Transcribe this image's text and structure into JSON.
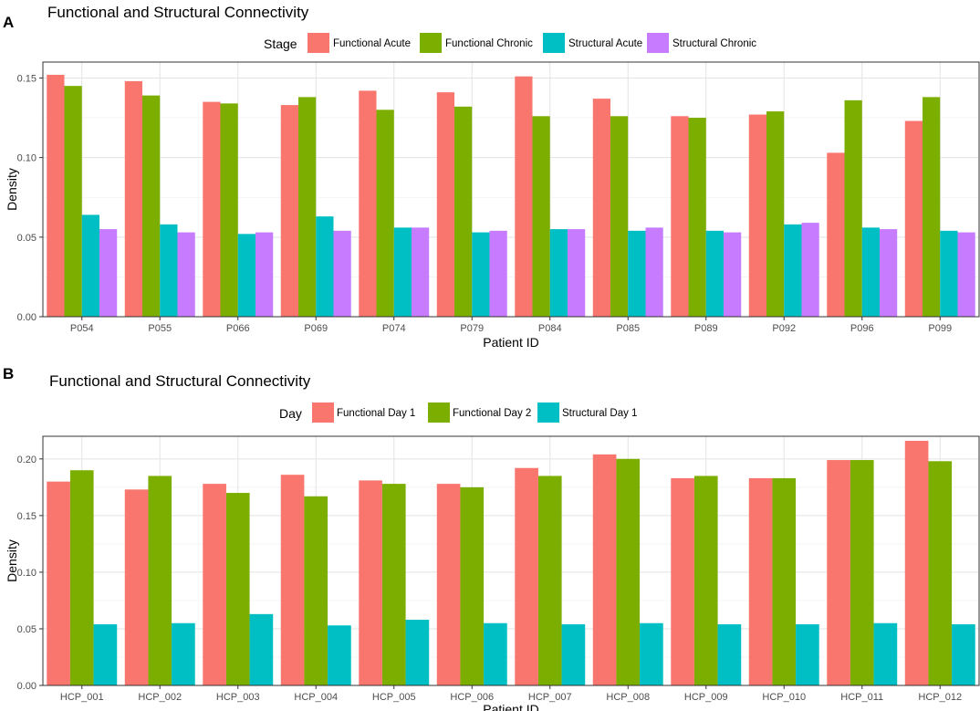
{
  "chart_data": [
    {
      "panel_label": "A",
      "type": "bar",
      "title": "Functional and Structural Connectivity",
      "xlabel": "Patient ID",
      "ylabel": "Density",
      "ylim": [
        0,
        0.16
      ],
      "yticks": [
        "0.00",
        "0.05",
        "0.10",
        "0.15"
      ],
      "grid": true,
      "legend_title": "Stage",
      "legend_position": "top",
      "categories": [
        "P054",
        "P055",
        "P066",
        "P069",
        "P074",
        "P079",
        "P084",
        "P085",
        "P089",
        "P092",
        "P096",
        "P099"
      ],
      "series": [
        {
          "name": "Functional Acute",
          "color": "#F8766D",
          "values": [
            0.152,
            0.148,
            0.135,
            0.133,
            0.142,
            0.141,
            0.151,
            0.137,
            0.126,
            0.127,
            0.103,
            0.123
          ]
        },
        {
          "name": "Functional Chronic",
          "color": "#7CAE00",
          "values": [
            0.145,
            0.139,
            0.134,
            0.138,
            0.13,
            0.132,
            0.126,
            0.126,
            0.125,
            0.129,
            0.136,
            0.138
          ]
        },
        {
          "name": "Structural Acute",
          "color": "#00BFC4",
          "values": [
            0.064,
            0.058,
            0.052,
            0.063,
            0.056,
            0.053,
            0.055,
            0.054,
            0.054,
            0.058,
            0.056,
            0.054
          ]
        },
        {
          "name": "Structural Chronic",
          "color": "#C77CFF",
          "values": [
            0.055,
            0.053,
            0.053,
            0.054,
            0.056,
            0.054,
            0.055,
            0.056,
            0.053,
            0.059,
            0.055,
            0.053
          ]
        }
      ]
    },
    {
      "panel_label": "B",
      "type": "bar",
      "title": "Functional and Structural Connectivity",
      "xlabel": "Patient ID",
      "ylabel": "Density",
      "ylim": [
        0,
        0.22
      ],
      "yticks": [
        "0.00",
        "0.05",
        "0.10",
        "0.15",
        "0.20"
      ],
      "grid": true,
      "legend_title": "Day",
      "legend_position": "top",
      "categories": [
        "HCP_001",
        "HCP_002",
        "HCP_003",
        "HCP_004",
        "HCP_005",
        "HCP_006",
        "HCP_007",
        "HCP_008",
        "HCP_009",
        "HCP_010",
        "HCP_011",
        "HCP_012"
      ],
      "series": [
        {
          "name": "Functional Day 1",
          "color": "#F8766D",
          "values": [
            0.18,
            0.173,
            0.178,
            0.186,
            0.181,
            0.178,
            0.192,
            0.204,
            0.183,
            0.183,
            0.199,
            0.216
          ]
        },
        {
          "name": "Functional Day 2",
          "color": "#7CAE00",
          "values": [
            0.19,
            0.185,
            0.17,
            0.167,
            0.178,
            0.175,
            0.185,
            0.2,
            0.185,
            0.183,
            0.199,
            0.198
          ]
        },
        {
          "name": "Structural Day 1",
          "color": "#00BFC4",
          "values": [
            0.054,
            0.055,
            0.063,
            0.053,
            0.058,
            0.055,
            0.054,
            0.055,
            0.054,
            0.054,
            0.055,
            0.054
          ]
        }
      ]
    }
  ]
}
